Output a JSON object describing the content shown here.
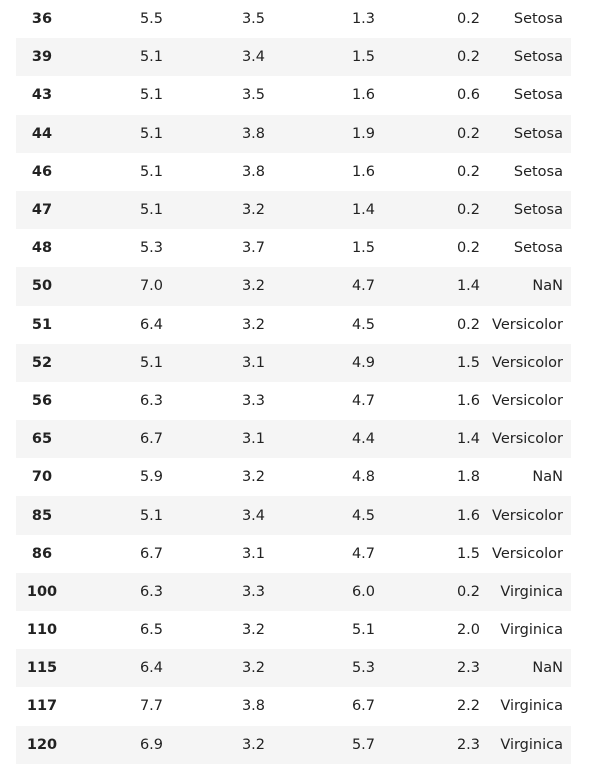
{
  "table": {
    "rows": [
      [
        "36",
        "5.5",
        "3.5",
        "1.3",
        "0.2",
        "Setosa"
      ],
      [
        "39",
        "5.1",
        "3.4",
        "1.5",
        "0.2",
        "Setosa"
      ],
      [
        "43",
        "5.1",
        "3.5",
        "1.6",
        "0.6",
        "Setosa"
      ],
      [
        "44",
        "5.1",
        "3.8",
        "1.9",
        "0.2",
        "Setosa"
      ],
      [
        "46",
        "5.1",
        "3.8",
        "1.6",
        "0.2",
        "Setosa"
      ],
      [
        "47",
        "5.1",
        "3.2",
        "1.4",
        "0.2",
        "Setosa"
      ],
      [
        "48",
        "5.3",
        "3.7",
        "1.5",
        "0.2",
        "Setosa"
      ],
      [
        "50",
        "7.0",
        "3.2",
        "4.7",
        "1.4",
        "NaN"
      ],
      [
        "51",
        "6.4",
        "3.2",
        "4.5",
        "0.2",
        "Versicolor"
      ],
      [
        "52",
        "5.1",
        "3.1",
        "4.9",
        "1.5",
        "Versicolor"
      ],
      [
        "56",
        "6.3",
        "3.3",
        "4.7",
        "1.6",
        "Versicolor"
      ],
      [
        "65",
        "6.7",
        "3.1",
        "4.4",
        "1.4",
        "Versicolor"
      ],
      [
        "70",
        "5.9",
        "3.2",
        "4.8",
        "1.8",
        "NaN"
      ],
      [
        "85",
        "5.1",
        "3.4",
        "4.5",
        "1.6",
        "Versicolor"
      ],
      [
        "86",
        "6.7",
        "3.1",
        "4.7",
        "1.5",
        "Versicolor"
      ],
      [
        "100",
        "6.3",
        "3.3",
        "6.0",
        "0.2",
        "Virginica"
      ],
      [
        "110",
        "6.5",
        "3.2",
        "5.1",
        "2.0",
        "Virginica"
      ],
      [
        "115",
        "6.4",
        "3.2",
        "5.3",
        "2.3",
        "NaN"
      ],
      [
        "117",
        "7.7",
        "3.8",
        "6.7",
        "2.2",
        "Virginica"
      ],
      [
        "120",
        "6.9",
        "3.2",
        "5.7",
        "2.3",
        "Virginica"
      ]
    ]
  },
  "colors": {
    "stripe": "#f5f5f5",
    "text": "#222222"
  }
}
